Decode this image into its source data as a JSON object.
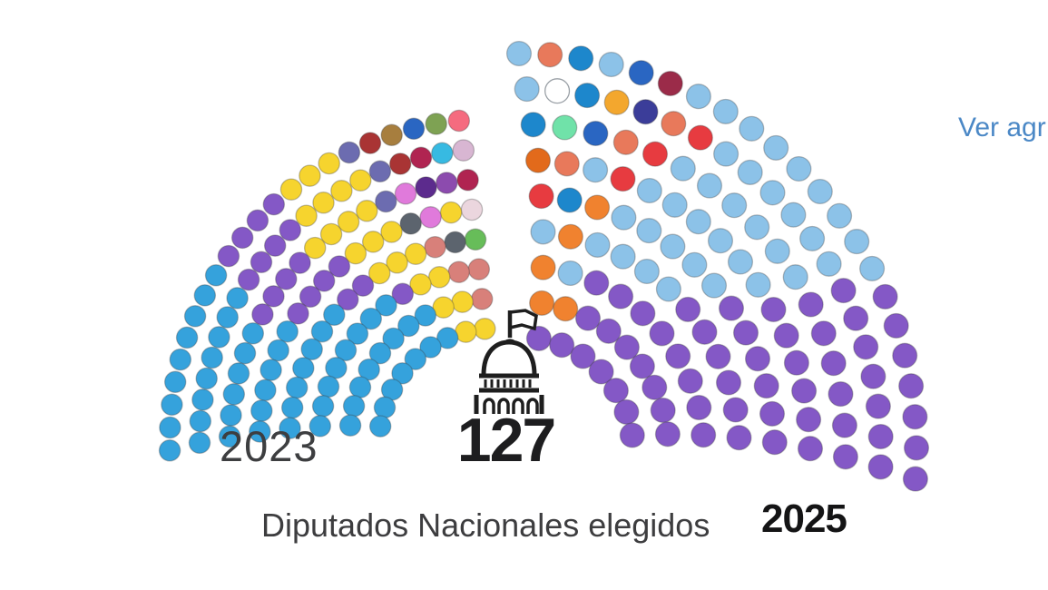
{
  "link": {
    "label": "Ver agr",
    "color": "#4b88c6"
  },
  "chart_data": {
    "type": "parliament-comparison",
    "title": "Diputados Nacionales elegidos",
    "total_label": "127",
    "legend": "none visible",
    "palette": {
      "celeste": "#35A2DC",
      "celeste_claro": "#8CC2E8",
      "violeta": "#8458C6",
      "amarillo": "#F6D42E",
      "naranja": "#F0822F",
      "naranja_oscuro": "#E26A1B",
      "salmon": "#E8795B",
      "rosa_salmon": "#D8807A",
      "salmon_rosa": "#F56B7F",
      "rojo": "#E73B40",
      "carmesi": "#B02451",
      "granate": "#9B2B49",
      "rojo_oscuro": "#A93434",
      "azul": "#1D87CC",
      "azul_real": "#2A66C2",
      "indigo": "#3B3D99",
      "menta": "#70E2A9",
      "blanco": "#FFFFFF",
      "cian": "#37BAE2",
      "oliva": "#7EA253",
      "verde": "#67BD59",
      "gris": "#5C646E",
      "marron": "#A77E3E",
      "azul_pizarra": "#6C6CB0",
      "purpura_oscuro": "#5C2B8D",
      "violeta_medio": "#8C4BAE",
      "orquidea": "#E07ADB",
      "rosa_claro": "#D8B6D2",
      "rosa_palido": "#EBD6DE"
    },
    "left": {
      "year_label": "2023",
      "center": [
        543,
        487
      ],
      "dot_radius": 11.6,
      "row_radii": [
        125,
        158,
        191,
        224,
        257,
        290,
        323,
        356
      ],
      "start_angles": [
        94,
        96
      ],
      "end_angles": [
        172,
        181.5
      ],
      "rows": [
        [
          "amarillo",
          "amarillo",
          "celeste",
          "celeste",
          "celeste",
          "celeste",
          "celeste",
          "celeste",
          "celeste"
        ],
        [
          "rosa_salmon",
          "amarillo",
          "amarillo",
          "celeste",
          "celeste",
          "celeste",
          "celeste",
          "celeste",
          "celeste",
          "celeste",
          "celeste"
        ],
        [
          "rosa_salmon",
          "rosa_salmon",
          "amarillo",
          "amarillo",
          "violeta",
          "celeste",
          "celeste",
          "celeste",
          "celeste",
          "celeste",
          "celeste",
          "celeste",
          "celeste"
        ],
        [
          "verde",
          "gris",
          "rosa_salmon",
          "amarillo",
          "amarillo",
          "amarillo",
          "violeta",
          "violeta",
          "celeste",
          "celeste",
          "celeste",
          "celeste",
          "celeste",
          "celeste",
          "celeste"
        ],
        [
          "rosa_palido",
          "amarillo",
          "orquidea",
          "gris",
          "amarillo",
          "amarillo",
          "amarillo",
          "violeta",
          "violeta",
          "violeta",
          "violeta",
          "celeste",
          "celeste",
          "celeste",
          "celeste",
          "celeste",
          "celeste"
        ],
        [
          "carmesi",
          "violeta_medio",
          "purpura_oscuro",
          "orquidea",
          "azul_pizarra",
          "amarillo",
          "amarillo",
          "amarillo",
          "amarillo",
          "violeta",
          "violeta",
          "violeta",
          "violeta",
          "celeste",
          "celeste",
          "celeste",
          "celeste",
          "celeste",
          "celeste"
        ],
        [
          "rosa_claro",
          "cian",
          "carmesi",
          "rojo_oscuro",
          "azul_pizarra",
          "amarillo",
          "amarillo",
          "amarillo",
          "amarillo",
          "violeta",
          "violeta",
          "violeta",
          "violeta",
          "celeste",
          "celeste",
          "celeste",
          "celeste",
          "celeste",
          "celeste",
          "celeste",
          "celeste"
        ],
        [
          "salmon_rosa",
          "oliva",
          "azul_real",
          "marron",
          "rojo_oscuro",
          "azul_pizarra",
          "amarillo",
          "amarillo",
          "amarillo",
          "violeta",
          "violeta",
          "violeta",
          "violeta",
          "celeste",
          "celeste",
          "celeste",
          "celeste",
          "celeste",
          "celeste",
          "celeste",
          "celeste",
          "celeste"
        ]
      ]
    },
    "right": {
      "year_label": "2025",
      "center": [
        572,
        497
      ],
      "dot_radius": 13.4,
      "row_radii": [
        126,
        165,
        204,
        243,
        282,
        321,
        360,
        399,
        438
      ],
      "start_angles": [
        80,
        90
      ],
      "end_angles": [
        8,
        -4
      ],
      "rows": [
        [
          "violeta",
          "violeta",
          "violeta",
          "violeta",
          "violeta",
          "violeta",
          "violeta"
        ],
        [
          "naranja",
          "naranja",
          "violeta",
          "violeta",
          "violeta",
          "violeta",
          "violeta",
          "violeta",
          "violeta"
        ],
        [
          "naranja",
          "celeste_claro",
          "violeta",
          "violeta",
          "violeta",
          "violeta",
          "violeta",
          "violeta",
          "violeta",
          "violeta"
        ],
        [
          "celeste_claro",
          "naranja",
          "celeste_claro",
          "celeste_claro",
          "celeste_claro",
          "celeste_claro",
          "violeta",
          "violeta",
          "violeta",
          "violeta",
          "violeta",
          "violeta"
        ],
        [
          "rojo",
          "azul",
          "naranja",
          "celeste_claro",
          "celeste_claro",
          "celeste_claro",
          "celeste_claro",
          "celeste_claro",
          "violeta",
          "violeta",
          "violeta",
          "violeta",
          "violeta",
          "violeta"
        ],
        [
          "naranja_oscuro",
          "salmon",
          "celeste_claro",
          "rojo",
          "celeste_claro",
          "celeste_claro",
          "celeste_claro",
          "celeste_claro",
          "celeste_claro",
          "celeste_claro",
          "violeta",
          "violeta",
          "violeta",
          "violeta",
          "violeta",
          "violeta"
        ],
        [
          "azul",
          "menta",
          "azul_real",
          "salmon",
          "rojo",
          "celeste_claro",
          "celeste_claro",
          "celeste_claro",
          "celeste_claro",
          "celeste_claro",
          "celeste_claro",
          "violeta",
          "violeta",
          "violeta",
          "violeta",
          "violeta",
          "violeta"
        ],
        [
          "celeste_claro",
          "blanco",
          "azul",
          "ambar",
          "indigo",
          "salmon",
          "rojo",
          "celeste_claro",
          "celeste_claro",
          "celeste_claro",
          "celeste_claro",
          "celeste_claro",
          "celeste_claro",
          "violeta",
          "violeta",
          "violeta",
          "violeta",
          "violeta",
          "violeta",
          "violeta"
        ],
        [
          "celeste_claro",
          "salmon",
          "azul",
          "celeste_claro",
          "azul_real",
          "granate",
          "celeste_claro",
          "celeste_claro",
          "celeste_claro",
          "celeste_claro",
          "celeste_claro",
          "celeste_claro",
          "celeste_claro",
          "celeste_claro",
          "celeste_claro",
          "violeta",
          "violeta",
          "violeta",
          "violeta",
          "violeta",
          "violeta",
          "violeta"
        ]
      ]
    },
    "ambar_note": "ambar used in right row 8",
    "extra_palette": {
      "ambar": "#F3A72E"
    }
  }
}
